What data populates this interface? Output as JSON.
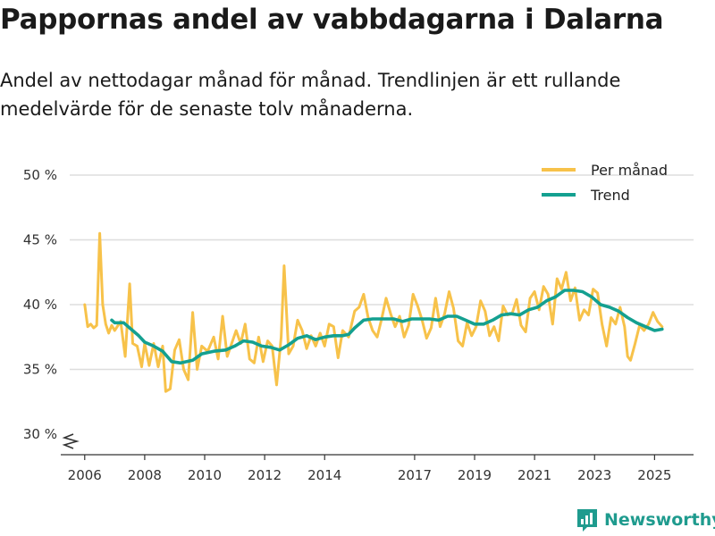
{
  "header": {
    "title": "Pappornas andel av vabbdagarna i Dalarna",
    "subtitle": "Andel av nettodagar månad för månad. Trendlinjen är ett rullande medelvärde för de senaste tolv månaderna."
  },
  "brand": {
    "name": "Newsworthy"
  },
  "colors": {
    "monthly": "#f7c24a",
    "trend": "#14a090",
    "grid": "#dddddd",
    "brand": "#1f9b8e"
  },
  "chart_data": {
    "type": "line",
    "title": "Pappornas andel av vabbdagarna i Dalarna",
    "ylim": [
      30,
      50
    ],
    "xlim": [
      2005.5,
      2026.3
    ],
    "y_ticks": [
      {
        "value": 50,
        "label": "50 %"
      },
      {
        "value": 45,
        "label": "45 %"
      },
      {
        "value": 40,
        "label": "40 %"
      },
      {
        "value": 35,
        "label": "35 %"
      },
      {
        "value": 30,
        "label": "30 %"
      }
    ],
    "x_ticks": [
      {
        "value": 2006,
        "label": "2006"
      },
      {
        "value": 2008,
        "label": "2008"
      },
      {
        "value": 2010,
        "label": "2010"
      },
      {
        "value": 2012,
        "label": "2012"
      },
      {
        "value": 2014,
        "label": "2014"
      },
      {
        "value": 2017,
        "label": "2017"
      },
      {
        "value": 2019,
        "label": "2019"
      },
      {
        "value": 2021,
        "label": "2021"
      },
      {
        "value": 2023,
        "label": "2023"
      },
      {
        "value": 2025,
        "label": "2025"
      }
    ],
    "legend_position": "top-right",
    "series": [
      {
        "name": "Per månad",
        "color": "#f7c24a",
        "points": [
          [
            2006.0,
            40.0
          ],
          [
            2006.1,
            38.3
          ],
          [
            2006.2,
            38.5
          ],
          [
            2006.3,
            38.2
          ],
          [
            2006.4,
            38.4
          ],
          [
            2006.5,
            45.5
          ],
          [
            2006.6,
            40.0
          ],
          [
            2006.7,
            38.5
          ],
          [
            2006.8,
            37.8
          ],
          [
            2006.9,
            38.4
          ],
          [
            2007.0,
            38.0
          ],
          [
            2007.2,
            38.7
          ],
          [
            2007.35,
            36.0
          ],
          [
            2007.5,
            41.6
          ],
          [
            2007.6,
            37.0
          ],
          [
            2007.75,
            36.8
          ],
          [
            2007.9,
            35.2
          ],
          [
            2008.0,
            37.0
          ],
          [
            2008.15,
            35.3
          ],
          [
            2008.3,
            37.0
          ],
          [
            2008.45,
            35.2
          ],
          [
            2008.6,
            36.8
          ],
          [
            2008.7,
            33.3
          ],
          [
            2008.85,
            33.5
          ],
          [
            2009.0,
            36.5
          ],
          [
            2009.15,
            37.3
          ],
          [
            2009.3,
            35.0
          ],
          [
            2009.45,
            34.2
          ],
          [
            2009.6,
            39.4
          ],
          [
            2009.75,
            35.0
          ],
          [
            2009.9,
            36.8
          ],
          [
            2010.1,
            36.4
          ],
          [
            2010.3,
            37.5
          ],
          [
            2010.45,
            35.8
          ],
          [
            2010.6,
            39.1
          ],
          [
            2010.75,
            36.0
          ],
          [
            2010.9,
            37.0
          ],
          [
            2011.05,
            38.0
          ],
          [
            2011.2,
            37.0
          ],
          [
            2011.35,
            38.5
          ],
          [
            2011.5,
            35.8
          ],
          [
            2011.65,
            35.5
          ],
          [
            2011.8,
            37.5
          ],
          [
            2011.95,
            35.6
          ],
          [
            2012.1,
            37.2
          ],
          [
            2012.25,
            36.8
          ],
          [
            2012.4,
            33.8
          ],
          [
            2012.55,
            37.5
          ],
          [
            2012.65,
            43.0
          ],
          [
            2012.8,
            36.2
          ],
          [
            2012.95,
            36.8
          ],
          [
            2013.1,
            38.8
          ],
          [
            2013.25,
            38.0
          ],
          [
            2013.4,
            36.6
          ],
          [
            2013.55,
            37.6
          ],
          [
            2013.7,
            36.8
          ],
          [
            2013.85,
            37.8
          ],
          [
            2014.0,
            36.8
          ],
          [
            2014.15,
            38.5
          ],
          [
            2014.3,
            38.3
          ],
          [
            2014.45,
            35.9
          ],
          [
            2014.6,
            38.0
          ],
          [
            2014.8,
            37.5
          ],
          [
            2015.0,
            39.5
          ],
          [
            2015.15,
            39.8
          ],
          [
            2015.3,
            40.8
          ],
          [
            2015.45,
            39.0
          ],
          [
            2015.6,
            38.0
          ],
          [
            2015.75,
            37.5
          ],
          [
            2015.9,
            38.9
          ],
          [
            2016.05,
            40.5
          ],
          [
            2016.2,
            39.3
          ],
          [
            2016.35,
            38.3
          ],
          [
            2016.5,
            39.1
          ],
          [
            2016.65,
            37.5
          ],
          [
            2016.8,
            38.4
          ],
          [
            2016.95,
            40.8
          ],
          [
            2017.1,
            39.9
          ],
          [
            2017.25,
            38.8
          ],
          [
            2017.4,
            37.4
          ],
          [
            2017.55,
            38.2
          ],
          [
            2017.7,
            40.5
          ],
          [
            2017.85,
            38.3
          ],
          [
            2018.0,
            39.3
          ],
          [
            2018.15,
            41.0
          ],
          [
            2018.3,
            39.7
          ],
          [
            2018.45,
            37.2
          ],
          [
            2018.6,
            36.8
          ],
          [
            2018.75,
            38.6
          ],
          [
            2018.9,
            37.6
          ],
          [
            2019.05,
            38.3
          ],
          [
            2019.2,
            40.3
          ],
          [
            2019.35,
            39.5
          ],
          [
            2019.5,
            37.6
          ],
          [
            2019.65,
            38.3
          ],
          [
            2019.8,
            37.2
          ],
          [
            2019.95,
            39.9
          ],
          [
            2020.1,
            39.2
          ],
          [
            2020.25,
            39.3
          ],
          [
            2020.4,
            40.4
          ],
          [
            2020.55,
            38.4
          ],
          [
            2020.7,
            37.9
          ],
          [
            2020.85,
            40.5
          ],
          [
            2021.0,
            41.0
          ],
          [
            2021.15,
            39.6
          ],
          [
            2021.3,
            41.4
          ],
          [
            2021.45,
            40.8
          ],
          [
            2021.6,
            38.5
          ],
          [
            2021.75,
            42.0
          ],
          [
            2021.9,
            41.2
          ],
          [
            2022.05,
            42.5
          ],
          [
            2022.2,
            40.3
          ],
          [
            2022.35,
            41.3
          ],
          [
            2022.5,
            38.8
          ],
          [
            2022.65,
            39.6
          ],
          [
            2022.8,
            39.2
          ],
          [
            2022.95,
            41.2
          ],
          [
            2023.1,
            40.9
          ],
          [
            2023.25,
            38.5
          ],
          [
            2023.4,
            36.8
          ],
          [
            2023.55,
            39.0
          ],
          [
            2023.7,
            38.5
          ],
          [
            2023.85,
            39.8
          ],
          [
            2024.0,
            38.3
          ],
          [
            2024.1,
            36.0
          ],
          [
            2024.2,
            35.7
          ],
          [
            2024.35,
            37.0
          ],
          [
            2024.5,
            38.4
          ],
          [
            2024.65,
            38.0
          ],
          [
            2024.8,
            38.5
          ],
          [
            2024.95,
            39.4
          ],
          [
            2025.1,
            38.7
          ],
          [
            2025.25,
            38.3
          ]
        ]
      },
      {
        "name": "Trend",
        "color": "#14a090",
        "points": [
          [
            2006.9,
            38.8
          ],
          [
            2007.0,
            38.6
          ],
          [
            2007.3,
            38.6
          ],
          [
            2007.5,
            38.2
          ],
          [
            2007.8,
            37.6
          ],
          [
            2008.0,
            37.1
          ],
          [
            2008.3,
            36.8
          ],
          [
            2008.6,
            36.4
          ],
          [
            2008.9,
            35.6
          ],
          [
            2009.2,
            35.5
          ],
          [
            2009.6,
            35.7
          ],
          [
            2009.9,
            36.2
          ],
          [
            2010.3,
            36.4
          ],
          [
            2010.7,
            36.5
          ],
          [
            2011.0,
            36.8
          ],
          [
            2011.3,
            37.2
          ],
          [
            2011.6,
            37.1
          ],
          [
            2011.9,
            36.8
          ],
          [
            2012.2,
            36.7
          ],
          [
            2012.5,
            36.5
          ],
          [
            2012.8,
            36.9
          ],
          [
            2013.1,
            37.4
          ],
          [
            2013.4,
            37.6
          ],
          [
            2013.7,
            37.3
          ],
          [
            2014.0,
            37.5
          ],
          [
            2014.3,
            37.6
          ],
          [
            2014.6,
            37.6
          ],
          [
            2014.8,
            37.7
          ],
          [
            2015.0,
            38.2
          ],
          [
            2015.3,
            38.8
          ],
          [
            2015.6,
            38.9
          ],
          [
            2016.0,
            38.9
          ],
          [
            2016.3,
            38.9
          ],
          [
            2016.6,
            38.7
          ],
          [
            2016.9,
            38.9
          ],
          [
            2017.2,
            38.9
          ],
          [
            2017.5,
            38.9
          ],
          [
            2017.8,
            38.8
          ],
          [
            2018.1,
            39.1
          ],
          [
            2018.4,
            39.1
          ],
          [
            2018.7,
            38.8
          ],
          [
            2019.0,
            38.5
          ],
          [
            2019.3,
            38.5
          ],
          [
            2019.6,
            38.8
          ],
          [
            2019.9,
            39.2
          ],
          [
            2020.2,
            39.3
          ],
          [
            2020.5,
            39.2
          ],
          [
            2020.8,
            39.6
          ],
          [
            2021.1,
            39.8
          ],
          [
            2021.4,
            40.3
          ],
          [
            2021.7,
            40.6
          ],
          [
            2022.0,
            41.1
          ],
          [
            2022.3,
            41.1
          ],
          [
            2022.6,
            41.0
          ],
          [
            2022.9,
            40.6
          ],
          [
            2023.2,
            40.0
          ],
          [
            2023.5,
            39.8
          ],
          [
            2023.8,
            39.5
          ],
          [
            2024.1,
            39.0
          ],
          [
            2024.4,
            38.6
          ],
          [
            2024.7,
            38.3
          ],
          [
            2025.0,
            38.0
          ],
          [
            2025.25,
            38.1
          ]
        ]
      }
    ]
  }
}
